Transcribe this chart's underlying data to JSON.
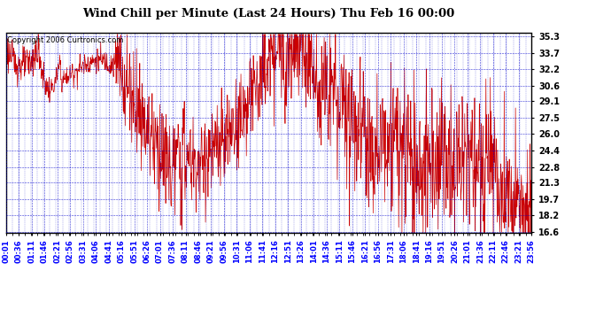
{
  "title": "Wind Chill per Minute (Last 24 Hours) Thu Feb 16 00:00",
  "copyright": "Copyright 2006 Curtronics.com",
  "line_color": "#CC0000",
  "background_color": "#ffffff",
  "grid_color": "#0000CC",
  "border_color": "#000000",
  "yticks": [
    16.6,
    18.2,
    19.7,
    21.3,
    22.8,
    24.4,
    26.0,
    27.5,
    29.1,
    30.6,
    32.2,
    33.7,
    35.3
  ],
  "ymin": 16.6,
  "ymax": 35.3,
  "xtick_labels": [
    "00:01",
    "00:36",
    "01:11",
    "01:46",
    "02:21",
    "02:56",
    "03:31",
    "04:06",
    "04:41",
    "05:16",
    "05:51",
    "06:26",
    "07:01",
    "07:36",
    "08:11",
    "08:46",
    "09:21",
    "09:56",
    "10:31",
    "11:06",
    "11:41",
    "12:16",
    "12:51",
    "13:26",
    "14:01",
    "14:36",
    "15:11",
    "15:46",
    "16:21",
    "16:56",
    "17:31",
    "18:06",
    "18:41",
    "19:16",
    "19:51",
    "20:26",
    "21:01",
    "21:36",
    "22:11",
    "22:46",
    "23:21",
    "23:56"
  ],
  "title_fontsize": 9.5,
  "copyright_fontsize": 6,
  "ytick_fontsize": 7,
  "xtick_fontsize": 6
}
